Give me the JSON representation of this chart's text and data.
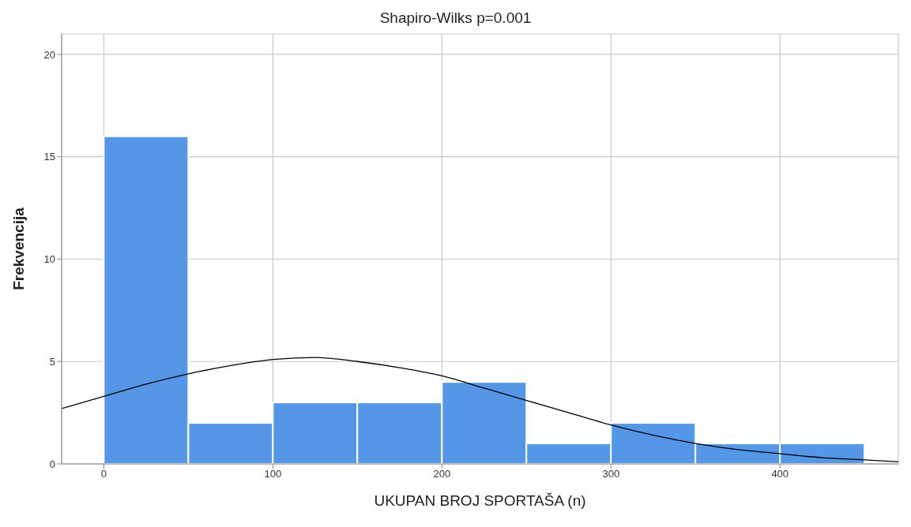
{
  "chart_data": {
    "type": "histogram",
    "title": "Shapiro-Wilks p=0.001",
    "xlabel": "UKUPAN BROJ SPORTAŠA (n)",
    "ylabel": "Frekvencija",
    "bins": [
      0,
      50,
      100,
      150,
      200,
      250,
      300,
      350,
      400,
      450
    ],
    "values": [
      16,
      2,
      3,
      3,
      4,
      1,
      2,
      1,
      1
    ],
    "color": "#5596e6",
    "series": [
      {
        "type": "line",
        "color": "#000000",
        "x": [
          -25,
          0,
          25,
          50,
          75,
          100,
          125,
          150,
          175,
          200,
          225,
          250,
          275,
          300,
          325,
          350,
          375,
          400,
          425,
          450,
          470
        ],
        "values": [
          2.7,
          3.3,
          3.9,
          4.4,
          4.8,
          5.1,
          5.2,
          5.0,
          4.7,
          4.3,
          3.7,
          3.1,
          2.5,
          1.9,
          1.4,
          1.0,
          0.7,
          0.5,
          0.3,
          0.2,
          0.1
        ]
      }
    ],
    "xlim": [
      -25,
      470
    ],
    "xticks": [
      0,
      100,
      200,
      300,
      400
    ],
    "ylim": [
      0,
      21
    ],
    "yticks": [
      0,
      5,
      10,
      15,
      20
    ],
    "grid": true
  }
}
